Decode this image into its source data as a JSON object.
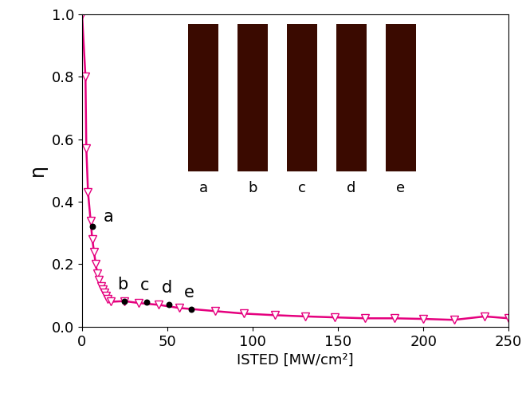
{
  "chart_data": {
    "type": "line",
    "x_label": "ISTED [MW/cm²]",
    "y_label": "η",
    "xlim": [
      0,
      250
    ],
    "ylim": [
      0,
      1.0
    ],
    "xticks": [
      0,
      50,
      100,
      150,
      200,
      250
    ],
    "yticks": [
      {
        "value": 0.0,
        "label": "0.0"
      },
      0.2,
      0.4,
      0.6,
      0.8,
      {
        "value": 1.0,
        "label": "1.0"
      }
    ],
    "grid": false,
    "series": [
      {
        "color": "#e5007e",
        "marker": "triangle_down",
        "line_style": "solid",
        "x": [
          0,
          2,
          2.5,
          3.5,
          5,
          6,
          7,
          8,
          9,
          10,
          11,
          12,
          13,
          14,
          15,
          17,
          25,
          33,
          45,
          57,
          78,
          95,
          113,
          131,
          148,
          166,
          183,
          200,
          218,
          236,
          250
        ],
        "values": [
          1.0,
          0.8,
          0.57,
          0.43,
          0.34,
          0.28,
          0.24,
          0.2,
          0.17,
          0.15,
          0.13,
          0.12,
          0.11,
          0.1,
          0.09,
          0.08,
          0.082,
          0.076,
          0.07,
          0.06,
          0.05,
          0.042,
          0.037,
          0.033,
          0.03,
          0.027,
          0.027,
          0.025,
          0.022,
          0.033,
          0.027
        ]
      }
    ],
    "points": {
      "type": "scatter",
      "color": "#000000",
      "labels": [
        "a",
        "b",
        "c",
        "d",
        "e"
      ],
      "x": [
        6,
        25,
        38,
        51,
        64
      ],
      "values": [
        0.32,
        0.082,
        0.078,
        0.07,
        0.055
      ]
    },
    "inset_labels": [
      "a",
      "b",
      "c",
      "d",
      "e"
    ]
  }
}
